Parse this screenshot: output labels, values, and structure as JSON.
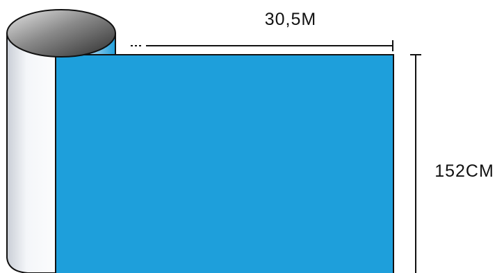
{
  "dimensions": {
    "length_label": "30,5M",
    "width_label": "152CM"
  },
  "colors": {
    "film": "#1e9fdb",
    "outline": "#111111",
    "roll_top_dark": "#3a3a3a",
    "roll_top_light": "#cfcfcf",
    "roll_body_light": "#ffffff",
    "roll_body_shadow": "#d8dde5"
  }
}
